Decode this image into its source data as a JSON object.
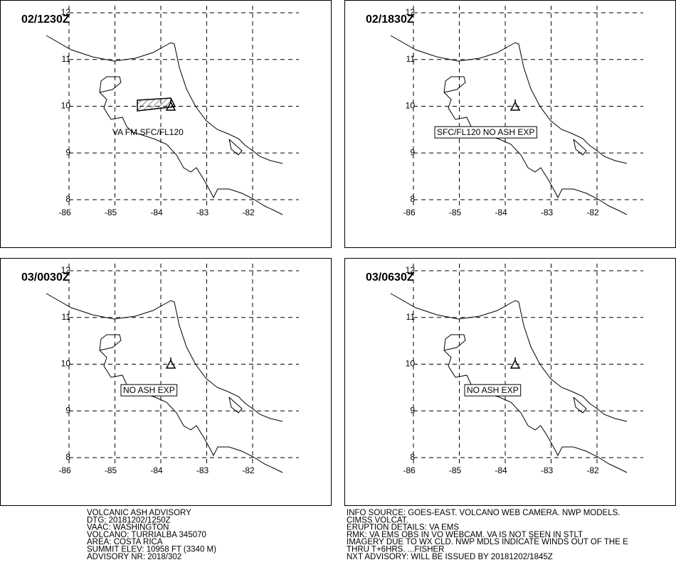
{
  "panels": [
    {
      "time": "02/1230Z",
      "annotation": "VA FM SFC/FL120"
    },
    {
      "time": "02/1830Z",
      "annotation": "SFC/FL120 NO ASH EXP"
    },
    {
      "time": "03/0030Z",
      "annotation": "NO ASH EXP"
    },
    {
      "time": "03/0630Z",
      "annotation": "NO ASH EXP"
    }
  ],
  "lat_ticks": [
    8,
    9,
    10,
    11,
    12
  ],
  "lon_ticks": [
    -86,
    -85,
    -84,
    -83,
    -82
  ],
  "advisory_left": [
    "VOLCANIC ASH ADVISORY",
    "DTG: 20181202/1250Z",
    "VAAC: WASHINGTON",
    "VOLCANO: TURRIALBA 345070",
    "AREA: COSTA RICA",
    "SUMMIT ELEV: 10958 FT (3340 M)",
    "ADVISORY NR: 2018/302"
  ],
  "advisory_right": [
    "INFO SOURCE: GOES-EAST. VOLCANO WEB CAMERA. NWP MODELS.",
    "CIMSS VOLCAT.",
    "ERUPTION DETAILS: VA EMS",
    "RMK: VA EMS OBS IN VO WEBCAM. VA IS NOT SEEN IN STLT",
    "IMAGERY DUE TO WX CLD. NWP MDLS INDICATE WINDS OUT OF THE E",
    "THRU T+6HRS. ...FISHER",
    "NXT ADVISORY: WILL BE ISSUED BY 20181202/1845Z"
  ]
}
